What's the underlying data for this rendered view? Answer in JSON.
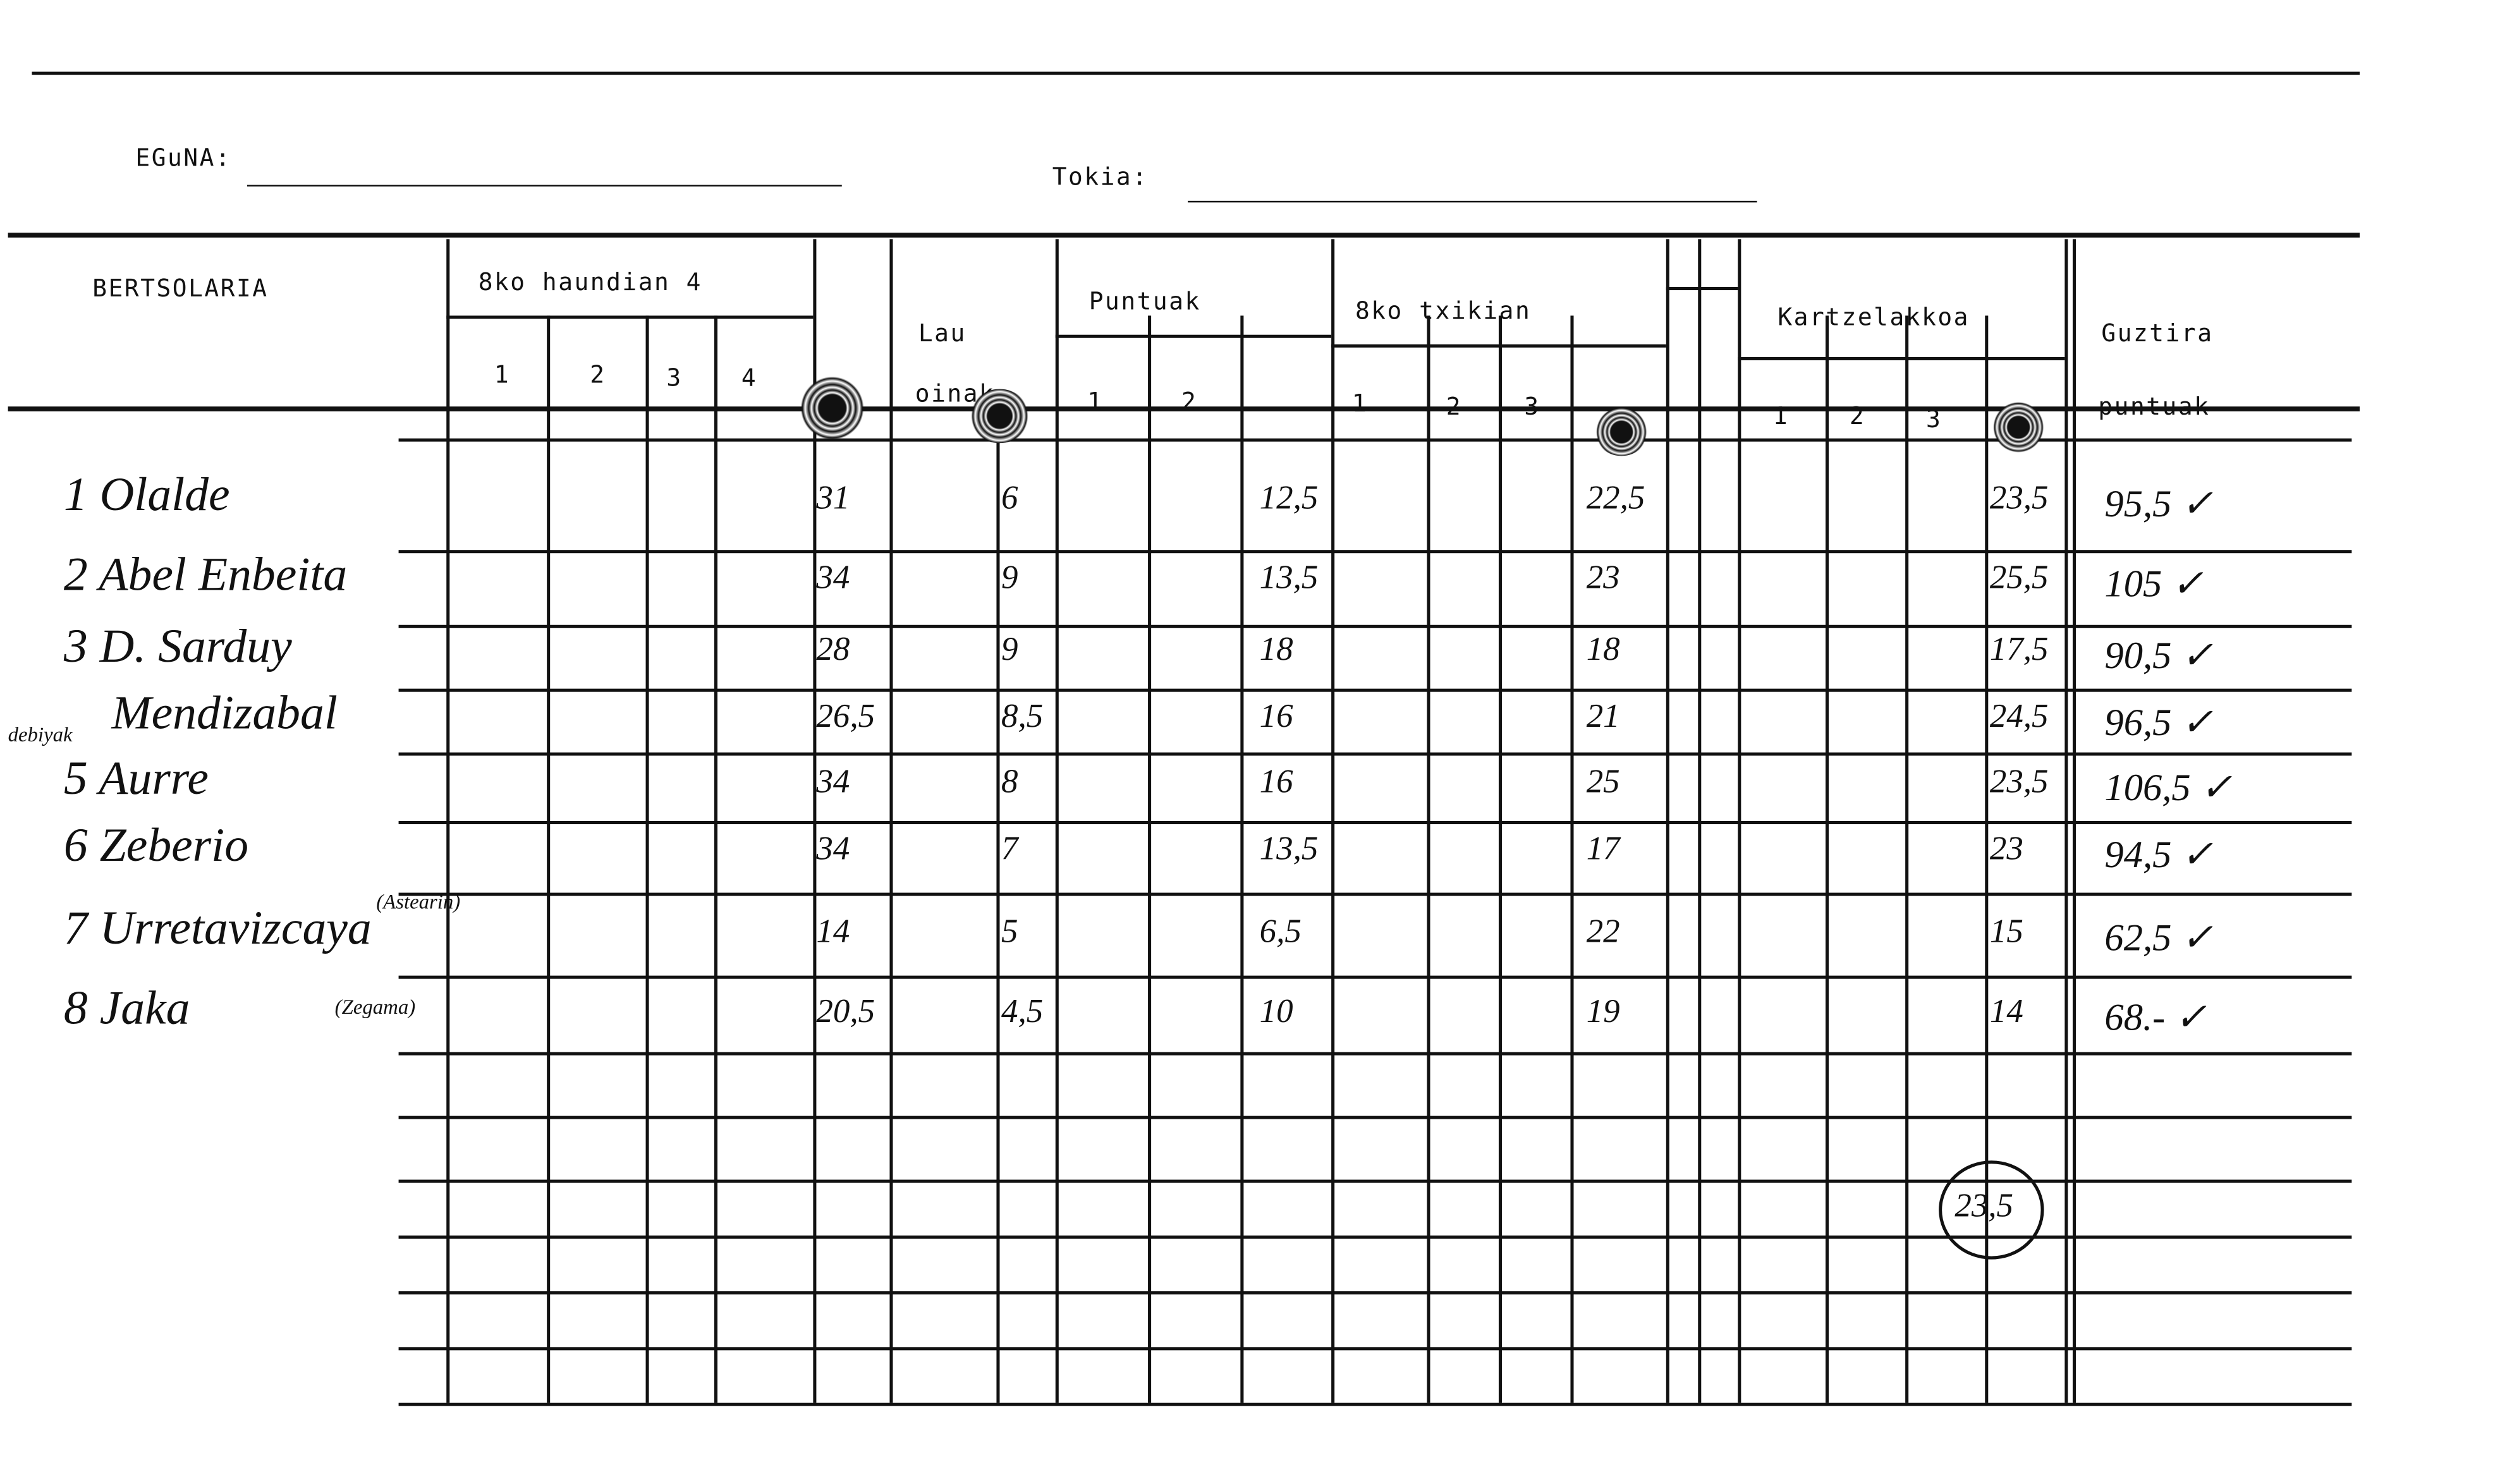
{
  "form": {
    "date_label": "EGuNA:",
    "place_label": "Tokia:",
    "date_value": "",
    "place_value": ""
  },
  "headers": {
    "bertsolaria": "BERTSOLARIA",
    "haundian": "8ko haundian 4",
    "haundian_sub": [
      "1",
      "2",
      "3",
      "4"
    ],
    "lau_oinak_1": "Lau",
    "lau_oinak_2": "oinak",
    "puntuak": "Puntuak",
    "puntuak_sub": [
      "1",
      "2"
    ],
    "txikian": "8ko txikian",
    "txikian_sub": [
      "1",
      "2",
      "3"
    ],
    "kartzelakkoa": "Kartzelakkoa",
    "kartzelakkoa_sub": [
      "1",
      "2",
      "3"
    ],
    "guztira_1": "Guztira",
    "guztira_2": "puntuak"
  },
  "rows": [
    {
      "name": "1 Olalde",
      "note": "",
      "haundian": "31",
      "lau_oinak": "6",
      "puntuak": "12,5",
      "txikian": "22,5",
      "kartzelakkoa": "23,5",
      "total": "95,5 ✓"
    },
    {
      "name": "2 Abel Enbeita",
      "note": "",
      "haundian": "34",
      "lau_oinak": "9",
      "puntuak": "13,5",
      "txikian": "23",
      "kartzelakkoa": "25,5",
      "total": "105 ✓"
    },
    {
      "name": "3 D. Sarduy",
      "note": "",
      "haundian": "28",
      "lau_oinak": "9",
      "puntuak": "18",
      "txikian": "18",
      "kartzelakkoa": "17,5",
      "total": "90,5 ✓"
    },
    {
      "name": "Mendizabal",
      "note": "debiyak",
      "haundian": "26,5",
      "lau_oinak": "8,5",
      "puntuak": "16",
      "txikian": "21",
      "kartzelakkoa": "24,5",
      "total": "96,5 ✓"
    },
    {
      "name": "5 Aurre",
      "note": "",
      "haundian": "34",
      "lau_oinak": "8",
      "puntuak": "16",
      "txikian": "25",
      "kartzelakkoa": "23,5",
      "total": "106,5 ✓"
    },
    {
      "name": "6 Zeberio",
      "note": "",
      "haundian": "34",
      "lau_oinak": "7",
      "puntuak": "13,5",
      "txikian": "17",
      "kartzelakkoa": "23",
      "total": "94,5 ✓"
    },
    {
      "name": "7 Urretavizcaya",
      "note": "(Astearin)",
      "haundian": "14",
      "lau_oinak": "5",
      "puntuak": "6,5",
      "txikian": "22",
      "kartzelakkoa": "15",
      "total": "62,5 ✓"
    },
    {
      "name": "8 Jaka",
      "note": "(Zegama)",
      "haundian": "20,5",
      "lau_oinak": "4,5",
      "puntuak": "10",
      "txikian": "19",
      "kartzelakkoa": "14",
      "total": "68.- ✓"
    }
  ],
  "extra_kartzelakkoa_score": "23,5"
}
